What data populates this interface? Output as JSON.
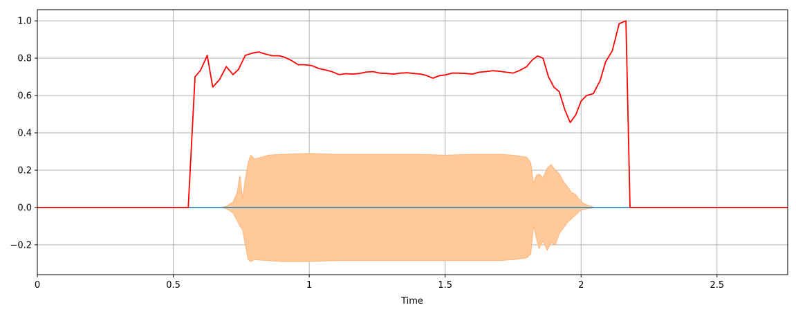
{
  "chart_data": {
    "type": "line",
    "title": "",
    "xlabel": "Time",
    "ylabel": "",
    "xlim": [
      0,
      2.76
    ],
    "ylim": [
      -0.36,
      1.06
    ],
    "grid": true,
    "xticks": [
      0,
      0.5,
      1,
      1.5,
      2,
      2.5
    ],
    "xtick_labels": [
      "0",
      "0.5",
      "1",
      "1.5",
      "2",
      "2.5"
    ],
    "yticks": [
      -0.2,
      0.0,
      0.2,
      0.4,
      0.6,
      0.8,
      1.0
    ],
    "ytick_labels": [
      "−0.2",
      "0.0",
      "0.2",
      "0.4",
      "0.6",
      "0.8",
      "1.0"
    ],
    "colors": {
      "envelope_line": "#ff0000",
      "waveform_fill": "#ffc999",
      "waveform_edge": "#ffb57a",
      "baseline": "#1f77b4",
      "grid": "#b0b0b0"
    },
    "waveform": {
      "name": "",
      "x": [
        0.68,
        0.7,
        0.72,
        0.735,
        0.745,
        0.755,
        0.765,
        0.775,
        0.785,
        0.8,
        0.85,
        0.9,
        1.0,
        1.1,
        1.2,
        1.3,
        1.4,
        1.5,
        1.6,
        1.7,
        1.75,
        1.8,
        1.815,
        1.825,
        1.835,
        1.845,
        1.86,
        1.875,
        1.89,
        1.905,
        1.92,
        1.935,
        1.95,
        1.965,
        1.98,
        1.995,
        2.01,
        2.03,
        2.05
      ],
      "upper": [
        0.0,
        0.01,
        0.03,
        0.08,
        0.17,
        0.05,
        0.15,
        0.24,
        0.28,
        0.26,
        0.28,
        0.285,
        0.29,
        0.285,
        0.285,
        0.285,
        0.285,
        0.28,
        0.285,
        0.285,
        0.28,
        0.27,
        0.24,
        0.13,
        0.17,
        0.18,
        0.16,
        0.21,
        0.23,
        0.2,
        0.18,
        0.14,
        0.11,
        0.08,
        0.07,
        0.04,
        0.02,
        0.01,
        0.0
      ],
      "lower": [
        0.0,
        -0.01,
        -0.03,
        -0.07,
        -0.1,
        -0.12,
        -0.2,
        -0.28,
        -0.29,
        -0.28,
        -0.285,
        -0.29,
        -0.29,
        -0.285,
        -0.285,
        -0.285,
        -0.285,
        -0.285,
        -0.285,
        -0.285,
        -0.28,
        -0.27,
        -0.25,
        -0.1,
        -0.16,
        -0.22,
        -0.18,
        -0.23,
        -0.19,
        -0.2,
        -0.14,
        -0.11,
        -0.08,
        -0.06,
        -0.04,
        -0.02,
        -0.01,
        -0.005,
        0.0
      ]
    },
    "series": [
      {
        "name": "",
        "x": [
          0.0,
          0.555,
          0.58,
          0.6,
          0.625,
          0.645,
          0.67,
          0.695,
          0.72,
          0.74,
          0.765,
          0.79,
          0.815,
          0.84,
          0.865,
          0.89,
          0.91,
          0.935,
          0.96,
          0.985,
          1.01,
          1.035,
          1.06,
          1.085,
          1.11,
          1.135,
          1.16,
          1.185,
          1.21,
          1.235,
          1.26,
          1.285,
          1.31,
          1.335,
          1.36,
          1.385,
          1.41,
          1.43,
          1.455,
          1.48,
          1.5,
          1.525,
          1.55,
          1.575,
          1.6,
          1.625,
          1.65,
          1.675,
          1.7,
          1.725,
          1.75,
          1.775,
          1.8,
          1.82,
          1.84,
          1.86,
          1.88,
          1.9,
          1.92,
          1.94,
          1.96,
          1.98,
          2.0,
          2.02,
          2.045,
          2.07,
          2.09,
          2.115,
          2.14,
          2.165,
          2.18,
          2.205,
          2.76
        ],
        "values": [
          0.0,
          0.0,
          0.7,
          0.735,
          0.815,
          0.645,
          0.685,
          0.755,
          0.712,
          0.74,
          0.815,
          0.827,
          0.833,
          0.822,
          0.813,
          0.813,
          0.805,
          0.787,
          0.765,
          0.765,
          0.76,
          0.745,
          0.737,
          0.727,
          0.712,
          0.717,
          0.715,
          0.718,
          0.726,
          0.728,
          0.72,
          0.718,
          0.715,
          0.72,
          0.722,
          0.718,
          0.715,
          0.708,
          0.693,
          0.707,
          0.71,
          0.72,
          0.72,
          0.718,
          0.715,
          0.725,
          0.728,
          0.733,
          0.73,
          0.725,
          0.72,
          0.735,
          0.755,
          0.79,
          0.812,
          0.8,
          0.7,
          0.645,
          0.62,
          0.525,
          0.455,
          0.495,
          0.57,
          0.6,
          0.61,
          0.68,
          0.78,
          0.84,
          0.985,
          1.0,
          0.0,
          0.0,
          0.0
        ]
      }
    ]
  }
}
